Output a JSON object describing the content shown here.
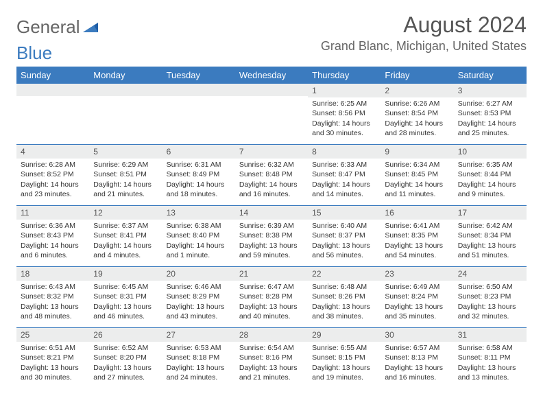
{
  "logo": {
    "word1": "General",
    "word2": "Blue"
  },
  "title": "August 2024",
  "location": "Grand Blanc, Michigan, United States",
  "colors": {
    "header_bg": "#3b7bbf",
    "header_text": "#ffffff",
    "daynum_bg": "#eceded",
    "week_divider": "#3b7bbf",
    "logo_gray": "#666666",
    "logo_blue": "#3b7bbf"
  },
  "day_names": [
    "Sunday",
    "Monday",
    "Tuesday",
    "Wednesday",
    "Thursday",
    "Friday",
    "Saturday"
  ],
  "weeks": [
    [
      null,
      null,
      null,
      null,
      {
        "n": "1",
        "sunrise": "6:25 AM",
        "sunset": "8:56 PM",
        "daylight": "14 hours and 30 minutes."
      },
      {
        "n": "2",
        "sunrise": "6:26 AM",
        "sunset": "8:54 PM",
        "daylight": "14 hours and 28 minutes."
      },
      {
        "n": "3",
        "sunrise": "6:27 AM",
        "sunset": "8:53 PM",
        "daylight": "14 hours and 25 minutes."
      }
    ],
    [
      {
        "n": "4",
        "sunrise": "6:28 AM",
        "sunset": "8:52 PM",
        "daylight": "14 hours and 23 minutes."
      },
      {
        "n": "5",
        "sunrise": "6:29 AM",
        "sunset": "8:51 PM",
        "daylight": "14 hours and 21 minutes."
      },
      {
        "n": "6",
        "sunrise": "6:31 AM",
        "sunset": "8:49 PM",
        "daylight": "14 hours and 18 minutes."
      },
      {
        "n": "7",
        "sunrise": "6:32 AM",
        "sunset": "8:48 PM",
        "daylight": "14 hours and 16 minutes."
      },
      {
        "n": "8",
        "sunrise": "6:33 AM",
        "sunset": "8:47 PM",
        "daylight": "14 hours and 14 minutes."
      },
      {
        "n": "9",
        "sunrise": "6:34 AM",
        "sunset": "8:45 PM",
        "daylight": "14 hours and 11 minutes."
      },
      {
        "n": "10",
        "sunrise": "6:35 AM",
        "sunset": "8:44 PM",
        "daylight": "14 hours and 9 minutes."
      }
    ],
    [
      {
        "n": "11",
        "sunrise": "6:36 AM",
        "sunset": "8:43 PM",
        "daylight": "14 hours and 6 minutes."
      },
      {
        "n": "12",
        "sunrise": "6:37 AM",
        "sunset": "8:41 PM",
        "daylight": "14 hours and 4 minutes."
      },
      {
        "n": "13",
        "sunrise": "6:38 AM",
        "sunset": "8:40 PM",
        "daylight": "14 hours and 1 minute."
      },
      {
        "n": "14",
        "sunrise": "6:39 AM",
        "sunset": "8:38 PM",
        "daylight": "13 hours and 59 minutes."
      },
      {
        "n": "15",
        "sunrise": "6:40 AM",
        "sunset": "8:37 PM",
        "daylight": "13 hours and 56 minutes."
      },
      {
        "n": "16",
        "sunrise": "6:41 AM",
        "sunset": "8:35 PM",
        "daylight": "13 hours and 54 minutes."
      },
      {
        "n": "17",
        "sunrise": "6:42 AM",
        "sunset": "8:34 PM",
        "daylight": "13 hours and 51 minutes."
      }
    ],
    [
      {
        "n": "18",
        "sunrise": "6:43 AM",
        "sunset": "8:32 PM",
        "daylight": "13 hours and 48 minutes."
      },
      {
        "n": "19",
        "sunrise": "6:45 AM",
        "sunset": "8:31 PM",
        "daylight": "13 hours and 46 minutes."
      },
      {
        "n": "20",
        "sunrise": "6:46 AM",
        "sunset": "8:29 PM",
        "daylight": "13 hours and 43 minutes."
      },
      {
        "n": "21",
        "sunrise": "6:47 AM",
        "sunset": "8:28 PM",
        "daylight": "13 hours and 40 minutes."
      },
      {
        "n": "22",
        "sunrise": "6:48 AM",
        "sunset": "8:26 PM",
        "daylight": "13 hours and 38 minutes."
      },
      {
        "n": "23",
        "sunrise": "6:49 AM",
        "sunset": "8:24 PM",
        "daylight": "13 hours and 35 minutes."
      },
      {
        "n": "24",
        "sunrise": "6:50 AM",
        "sunset": "8:23 PM",
        "daylight": "13 hours and 32 minutes."
      }
    ],
    [
      {
        "n": "25",
        "sunrise": "6:51 AM",
        "sunset": "8:21 PM",
        "daylight": "13 hours and 30 minutes."
      },
      {
        "n": "26",
        "sunrise": "6:52 AM",
        "sunset": "8:20 PM",
        "daylight": "13 hours and 27 minutes."
      },
      {
        "n": "27",
        "sunrise": "6:53 AM",
        "sunset": "8:18 PM",
        "daylight": "13 hours and 24 minutes."
      },
      {
        "n": "28",
        "sunrise": "6:54 AM",
        "sunset": "8:16 PM",
        "daylight": "13 hours and 21 minutes."
      },
      {
        "n": "29",
        "sunrise": "6:55 AM",
        "sunset": "8:15 PM",
        "daylight": "13 hours and 19 minutes."
      },
      {
        "n": "30",
        "sunrise": "6:57 AM",
        "sunset": "8:13 PM",
        "daylight": "13 hours and 16 minutes."
      },
      {
        "n": "31",
        "sunrise": "6:58 AM",
        "sunset": "8:11 PM",
        "daylight": "13 hours and 13 minutes."
      }
    ]
  ],
  "labels": {
    "sunrise": "Sunrise:",
    "sunset": "Sunset:",
    "daylight": "Daylight:"
  }
}
